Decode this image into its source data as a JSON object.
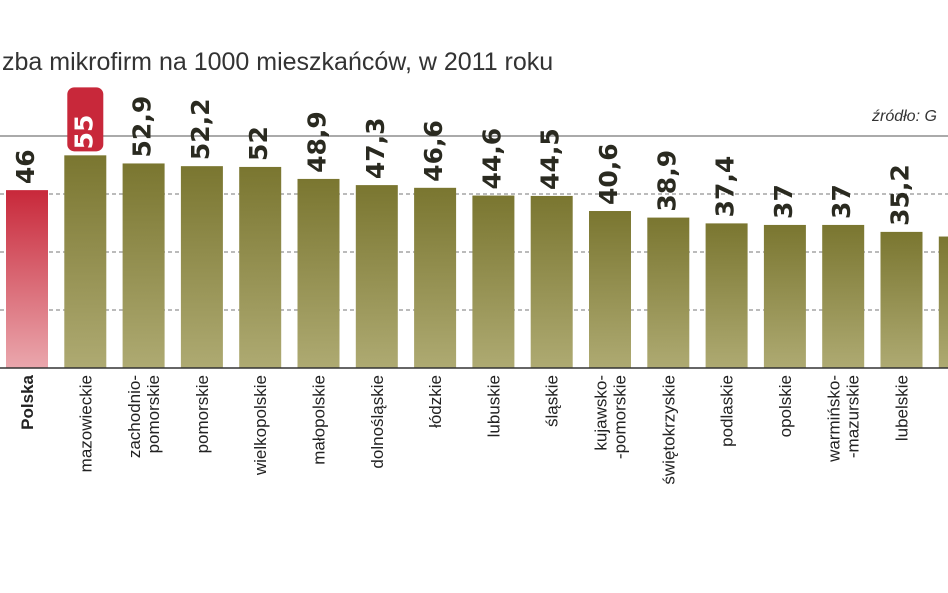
{
  "chart_data": {
    "type": "bar",
    "title": "zba mikrofirm na 1000 mieszkańców, w 2011 roku",
    "source": "źródło: G",
    "categories": [
      "Polska",
      "mazowieckie",
      "zachodnio-\npomorskie",
      "pomorskie",
      "wielkopolskie",
      "małopolskie",
      "dolnośląskie",
      "łódzkie",
      "lubuskie",
      "śląskie",
      "kujawsko-\n-pomorskie",
      "świętokrzyskie",
      "podlaskie",
      "opolskie",
      "warmińsko-\n-mazurskie",
      "lubelskie",
      null
    ],
    "values": [
      46,
      55,
      52.9,
      52.2,
      52,
      48.9,
      47.3,
      46.6,
      44.6,
      44.5,
      40.6,
      38.9,
      37.4,
      37,
      37,
      35.2,
      34
    ],
    "value_labels": [
      "46",
      "55",
      "52,9",
      "52,2",
      "52",
      "48,9",
      "47,3",
      "46,6",
      "44,6",
      "44,5",
      "40,6",
      "38,9",
      "37,4",
      "37",
      "37",
      "35,2",
      null
    ],
    "color": "#8a8640",
    "highlight_color": "#c8283a",
    "ylim": [
      0,
      60
    ],
    "gridlines": [
      15,
      30,
      45,
      60
    ],
    "grid": true
  }
}
